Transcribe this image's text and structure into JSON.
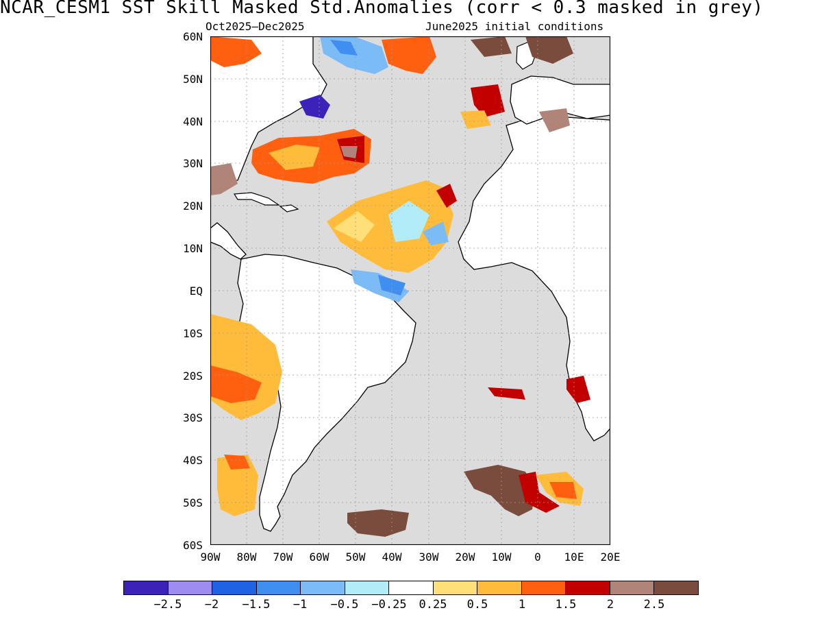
{
  "header": {
    "title": "NCAR_CESM1  SST Skill Masked Std.Anomalies (corr < 0.3 masked in grey)",
    "period": "Oct2025–Dec2025",
    "init": "June2025 initial conditions"
  },
  "map": {
    "lat_labels": [
      "60N",
      "50N",
      "40N",
      "30N",
      "20N",
      "10N",
      "EQ",
      "10S",
      "20S",
      "30S",
      "40S",
      "50S",
      "60S"
    ],
    "lon_labels": [
      "90W",
      "80W",
      "70W",
      "60W",
      "50W",
      "40W",
      "30W",
      "20W",
      "10W",
      "0",
      "10E",
      "20E"
    ],
    "lon_range": [
      -90,
      20
    ],
    "lat_range": [
      -60,
      60
    ],
    "colors": {
      "ocean_masked": "#dcdcdc",
      "land": "#ffffff",
      "coast": "#000000",
      "grid": "#9a9a9a"
    }
  },
  "colorbar": {
    "colors": [
      "#3c22b8",
      "#9f8cf0",
      "#1f62e4",
      "#3f8ef2",
      "#7cbcf6",
      "#b2ecf8",
      "#ffffff",
      "#ffe078",
      "#ffbc3a",
      "#ff6010",
      "#c30000",
      "#b08478",
      "#7a4c3e"
    ],
    "labels": [
      "−2.5",
      "−2",
      "−1.5",
      "−1",
      "−0.5",
      "−0.25",
      "0.25",
      "0.5",
      "1",
      "1.5",
      "2",
      "2.5"
    ]
  }
}
